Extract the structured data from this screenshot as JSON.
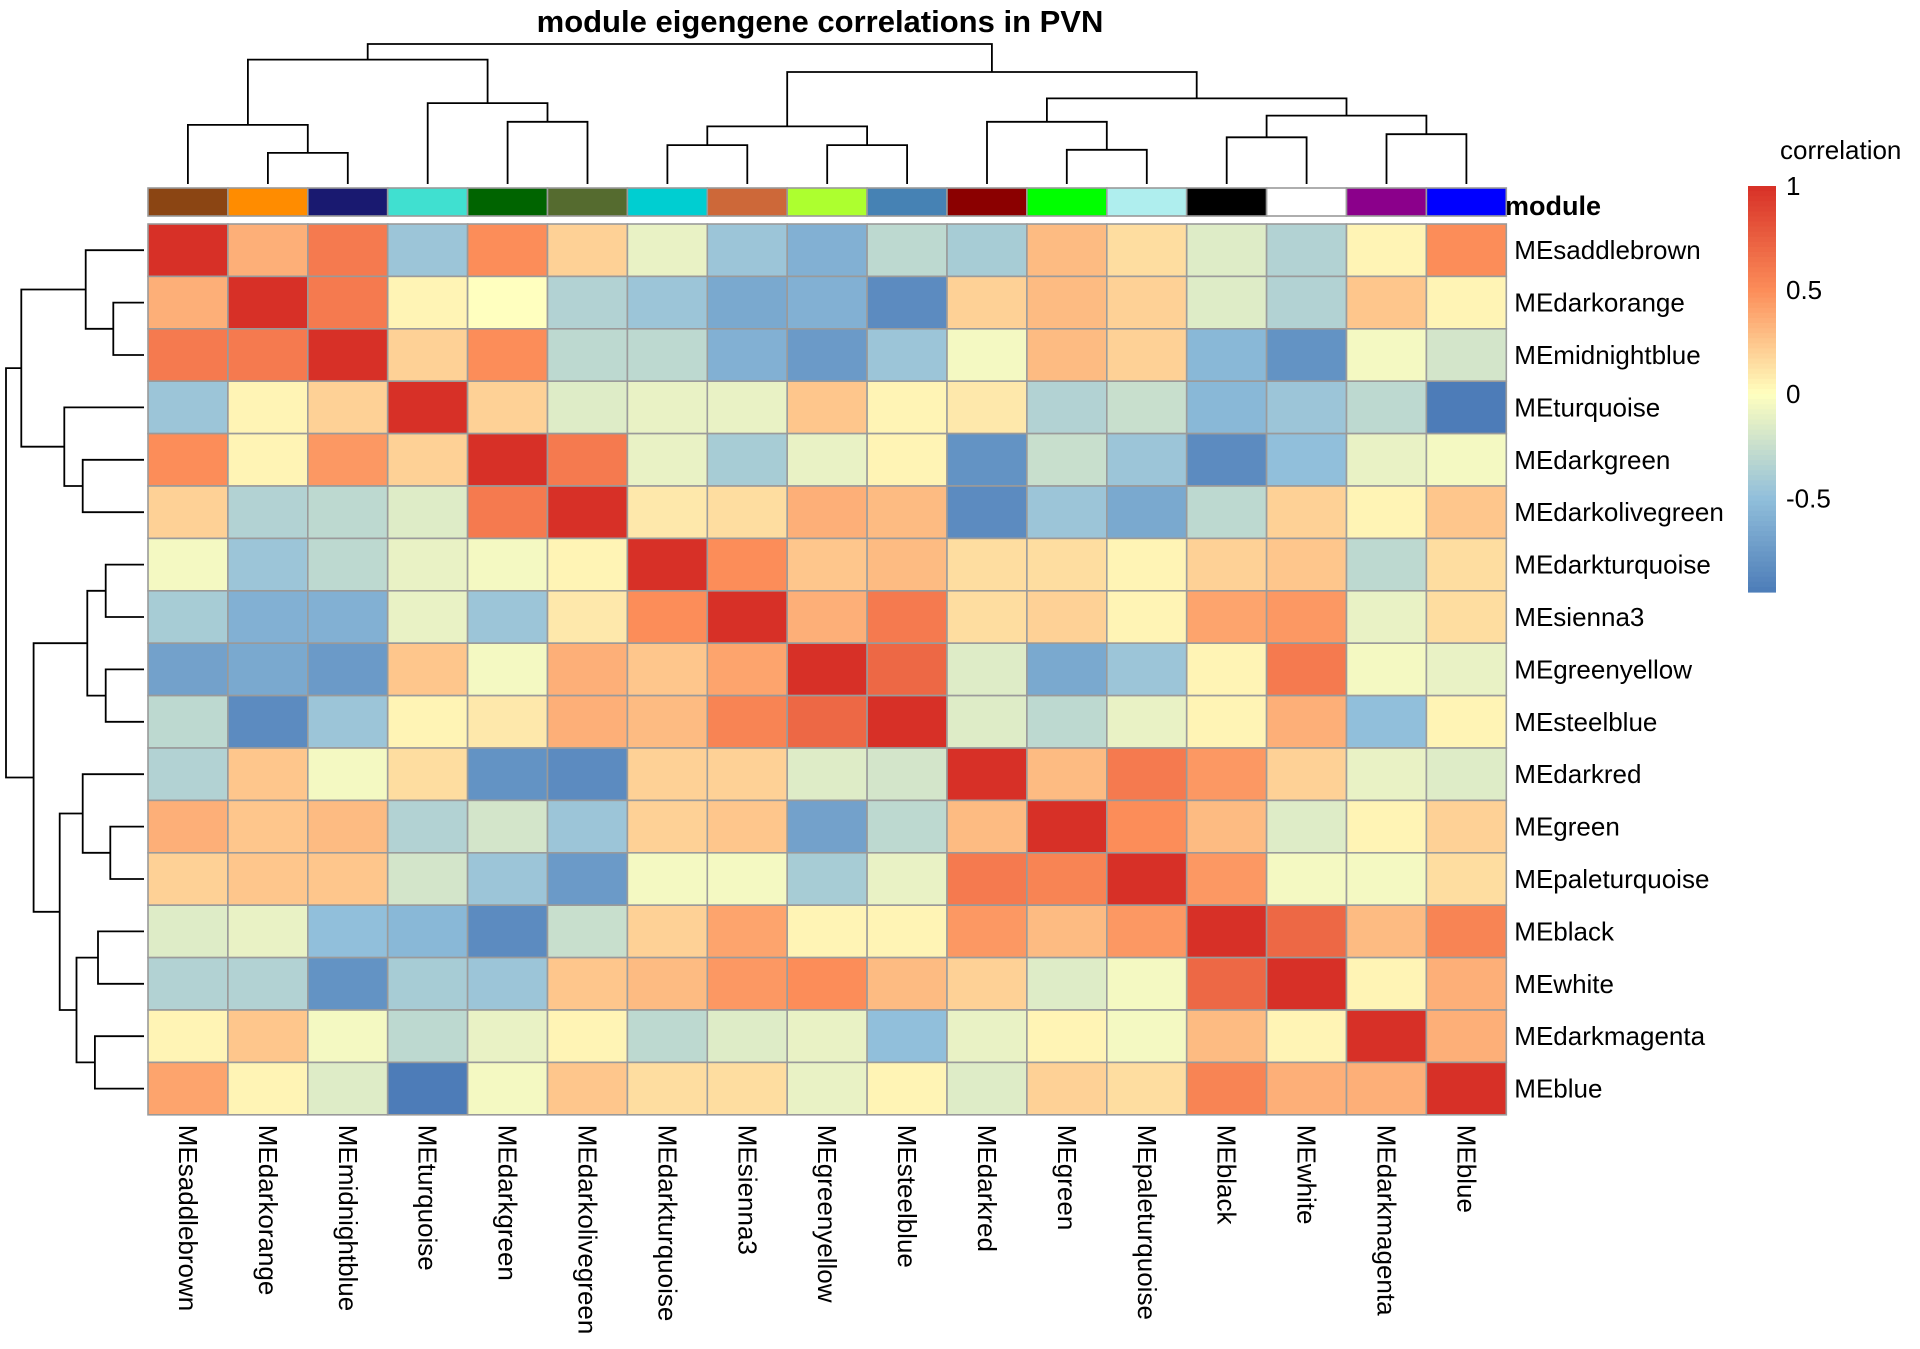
{
  "chart_data": {
    "type": "heatmap",
    "title": "module eigengene correlations in PVN",
    "annotation_label": "module",
    "legend": {
      "title": "correlation",
      "ticks": [
        1,
        0.5,
        0,
        -0.5
      ],
      "tick_labels": [
        "1",
        "0.5",
        "0",
        "-0.5"
      ],
      "range": [
        -0.95,
        1
      ]
    },
    "labels": [
      "MEsaddlebrown",
      "MEdarkorange",
      "MEmidnightblue",
      "MEturquoise",
      "MEdarkgreen",
      "MEdarkolivegreen",
      "MEdarkturquoise",
      "MEsienna3",
      "MEgreenyellow",
      "MEsteelblue",
      "MEdarkred",
      "MEgreen",
      "MEpaleturquoise",
      "MEblack",
      "MEwhite",
      "MEdarkmagenta",
      "MEblue"
    ],
    "module_colors": [
      "#8B4513",
      "#FF8C00",
      "#191970",
      "#40E0D0",
      "#006400",
      "#556B2F",
      "#00CED1",
      "#CD6839",
      "#ADFF2F",
      "#4682B4",
      "#8B0000",
      "#00FF00",
      "#AFEEEE",
      "#000000",
      "#FFFFFF",
      "#8B008B",
      "#0000FF"
    ],
    "matrix": [
      [
        1,
        0.35,
        0.6,
        -0.45,
        0.5,
        0.2,
        -0.1,
        -0.45,
        -0.6,
        -0.3,
        -0.4,
        0.3,
        0.15,
        -0.15,
        -0.35,
        0.05,
        0.5
      ],
      [
        0.35,
        1,
        0.6,
        0.05,
        0.0,
        -0.35,
        -0.45,
        -0.65,
        -0.6,
        -0.85,
        0.2,
        0.3,
        0.2,
        -0.15,
        -0.35,
        0.25,
        0.05
      ],
      [
        0.6,
        0.6,
        1,
        0.2,
        0.5,
        -0.3,
        -0.3,
        -0.6,
        -0.75,
        -0.45,
        -0.05,
        0.3,
        0.2,
        -0.55,
        -0.8,
        -0.05,
        -0.2
      ],
      [
        -0.45,
        0.05,
        0.2,
        1,
        0.2,
        -0.15,
        -0.1,
        -0.1,
        0.25,
        0.05,
        0.1,
        -0.35,
        -0.25,
        -0.55,
        -0.45,
        -0.3,
        -0.95
      ],
      [
        0.5,
        0.05,
        0.45,
        0.2,
        1,
        0.6,
        -0.1,
        -0.4,
        -0.1,
        0.05,
        -0.8,
        -0.25,
        -0.45,
        -0.85,
        -0.5,
        -0.1,
        -0.05
      ],
      [
        0.2,
        -0.35,
        -0.3,
        -0.15,
        0.6,
        1,
        0.1,
        0.15,
        0.35,
        0.3,
        -0.85,
        -0.45,
        -0.65,
        -0.3,
        0.2,
        0.05,
        0.25
      ],
      [
        -0.05,
        -0.45,
        -0.3,
        -0.1,
        -0.05,
        0.05,
        1,
        0.5,
        0.25,
        0.3,
        0.15,
        0.15,
        0.05,
        0.2,
        0.25,
        -0.3,
        0.15
      ],
      [
        -0.4,
        -0.6,
        -0.6,
        -0.1,
        -0.45,
        0.1,
        0.5,
        1,
        0.35,
        0.6,
        0.15,
        0.2,
        0.05,
        0.4,
        0.45,
        -0.1,
        0.15
      ],
      [
        -0.7,
        -0.65,
        -0.75,
        0.25,
        -0.05,
        0.35,
        0.25,
        0.4,
        1,
        0.7,
        -0.15,
        -0.65,
        -0.45,
        0.05,
        0.6,
        -0.05,
        -0.1
      ],
      [
        -0.3,
        -0.85,
        -0.45,
        0.05,
        0.1,
        0.35,
        0.3,
        0.55,
        0.7,
        1,
        -0.15,
        -0.3,
        -0.1,
        0.05,
        0.35,
        -0.5,
        0.05
      ],
      [
        -0.35,
        0.25,
        -0.05,
        0.15,
        -0.8,
        -0.85,
        0.2,
        0.2,
        -0.15,
        -0.2,
        1,
        0.3,
        0.6,
        0.45,
        0.2,
        -0.1,
        -0.15
      ],
      [
        0.35,
        0.25,
        0.3,
        -0.35,
        -0.2,
        -0.45,
        0.2,
        0.25,
        -0.7,
        -0.3,
        0.3,
        1,
        0.5,
        0.3,
        -0.15,
        0.05,
        0.2
      ],
      [
        0.2,
        0.25,
        0.25,
        -0.2,
        -0.45,
        -0.75,
        -0.05,
        -0.05,
        -0.4,
        -0.1,
        0.6,
        0.55,
        1,
        0.45,
        -0.05,
        -0.05,
        0.15
      ],
      [
        -0.15,
        -0.1,
        -0.5,
        -0.55,
        -0.85,
        -0.25,
        0.2,
        0.4,
        0.05,
        0.05,
        0.45,
        0.3,
        0.45,
        1,
        0.7,
        0.3,
        0.55
      ],
      [
        -0.35,
        -0.35,
        -0.8,
        -0.4,
        -0.45,
        0.25,
        0.3,
        0.45,
        0.5,
        0.3,
        0.2,
        -0.15,
        -0.05,
        0.7,
        1,
        0.05,
        0.35
      ],
      [
        0.05,
        0.25,
        -0.05,
        -0.3,
        -0.1,
        0.05,
        -0.3,
        -0.15,
        -0.1,
        -0.5,
        -0.1,
        0.05,
        -0.05,
        0.3,
        0.05,
        1,
        0.35
      ],
      [
        0.4,
        0.05,
        -0.15,
        -0.95,
        -0.05,
        0.25,
        0.15,
        0.15,
        -0.1,
        0.05,
        -0.15,
        0.2,
        0.15,
        0.55,
        0.35,
        0.35,
        1
      ]
    ],
    "dendrogram": {
      "leaf_order": [
        0,
        1,
        2,
        3,
        4,
        5,
        6,
        7,
        8,
        9,
        10,
        11,
        12,
        13,
        14,
        15,
        16
      ],
      "merges": [
        {
          "a": 1,
          "b": 2,
          "height": 0.2
        },
        {
          "a": 0,
          "b": "m0",
          "height": 0.38
        },
        {
          "a": 4,
          "b": 5,
          "height": 0.4
        },
        {
          "a": 3,
          "b": "m2",
          "height": 0.52
        },
        {
          "a": "m1",
          "b": "m3",
          "height": 0.8
        },
        {
          "a": 6,
          "b": 7,
          "height": 0.25
        },
        {
          "a": 8,
          "b": 9,
          "height": 0.25
        },
        {
          "a": "m5",
          "b": "m6",
          "height": 0.37
        },
        {
          "a": 11,
          "b": 12,
          "height": 0.22
        },
        {
          "a": 10,
          "b": "m8",
          "height": 0.4
        },
        {
          "a": 13,
          "b": 14,
          "height": 0.3
        },
        {
          "a": 15,
          "b": 16,
          "height": 0.32
        },
        {
          "a": "m10",
          "b": "m11",
          "height": 0.44
        },
        {
          "a": "m9",
          "b": "m12",
          "height": 0.55
        },
        {
          "a": "m7",
          "b": "m13",
          "height": 0.72
        },
        {
          "a": "m4",
          "b": "m14",
          "height": 0.9
        }
      ]
    }
  }
}
